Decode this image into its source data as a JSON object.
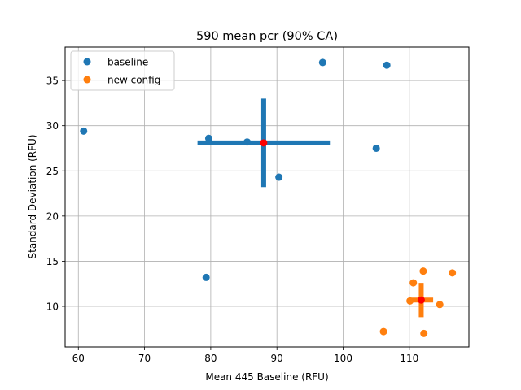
{
  "chart_data": {
    "type": "scatter",
    "title": "590 mean pcr (90% CA)",
    "xlabel": "Mean 445 Baseline (RFU)",
    "ylabel": "Standard Deviation (RFU)",
    "xlim": [
      58,
      119
    ],
    "ylim": [
      5.5,
      38.7
    ],
    "xticks": [
      60,
      70,
      80,
      90,
      100,
      110
    ],
    "yticks": [
      10,
      15,
      20,
      25,
      30,
      35
    ],
    "grid": true,
    "legend_position": "top-left",
    "series": [
      {
        "name": "baseline",
        "color": "#1f77b4",
        "points": [
          [
            60.8,
            29.4
          ],
          [
            79.3,
            13.2
          ],
          [
            79.7,
            28.6
          ],
          [
            85.5,
            28.2
          ],
          [
            90.3,
            24.3
          ],
          [
            96.9,
            37.0
          ],
          [
            105.0,
            27.5
          ],
          [
            106.6,
            36.7
          ]
        ],
        "mean": [
          88.0,
          28.1
        ],
        "errorbar": {
          "xerr": 10.0,
          "yerr": 4.9
        }
      },
      {
        "name": "new config",
        "color": "#ff7f0e",
        "points": [
          [
            106.1,
            7.2
          ],
          [
            110.1,
            10.6
          ],
          [
            110.6,
            12.6
          ],
          [
            112.1,
            13.9
          ],
          [
            112.2,
            7.0
          ],
          [
            114.6,
            10.2
          ],
          [
            116.5,
            13.7
          ]
        ],
        "mean": [
          111.8,
          10.7
        ],
        "errorbar": {
          "xerr": 1.8,
          "yerr": 1.9
        }
      }
    ],
    "mean_marker_color": "#ff0000"
  }
}
